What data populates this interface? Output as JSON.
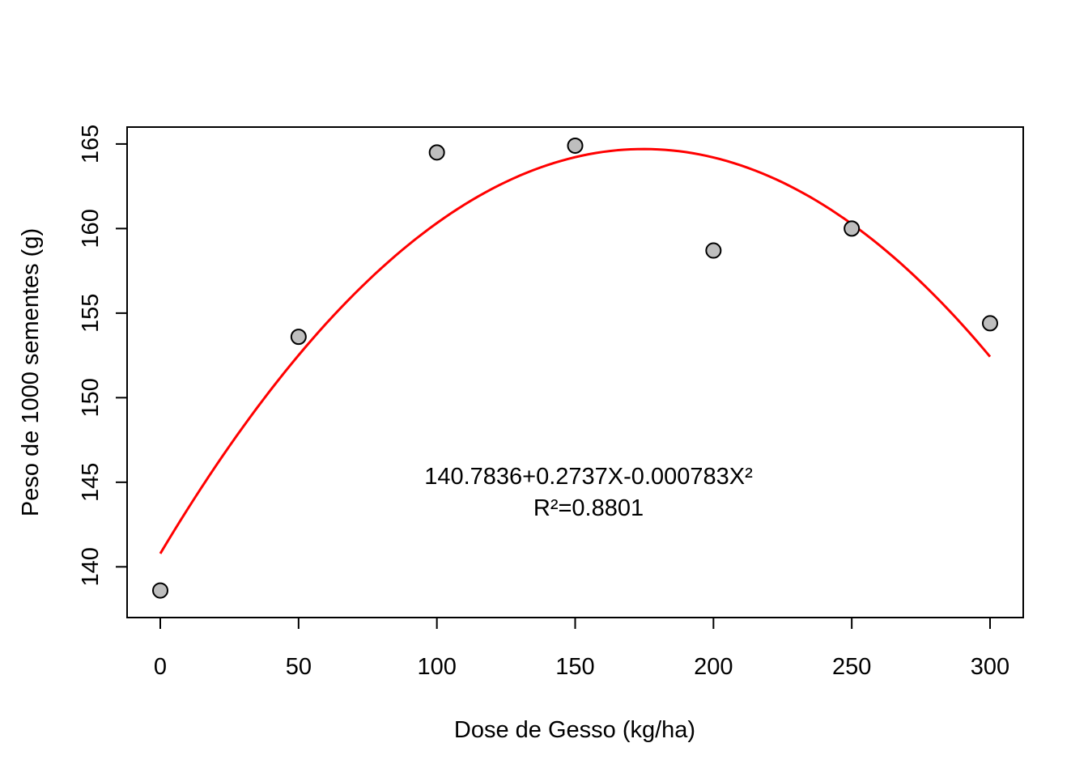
{
  "chart_data": {
    "type": "scatter",
    "title": "",
    "xlabel": "Dose de Gesso (kg/ha)",
    "ylabel": "Peso de 1000 sementes (g)",
    "xlim": [
      -12,
      312
    ],
    "ylim": [
      137,
      166
    ],
    "xticks": [
      0,
      50,
      100,
      150,
      200,
      250,
      300
    ],
    "yticks": [
      140,
      145,
      150,
      155,
      160,
      165
    ],
    "grid": false,
    "legend": "none",
    "series": [
      {
        "x": [
          0,
          50,
          100,
          150,
          200,
          250,
          300
        ],
        "y": [
          138.6,
          153.6,
          164.5,
          164.9,
          158.7,
          160.0,
          154.4
        ],
        "marker": "circle",
        "fill_color": "#bebebe",
        "edge_color": "#000000"
      }
    ],
    "fit_curve": {
      "type": "quadratic",
      "intercept": 140.7836,
      "linear": 0.2737,
      "quadratic": -0.000783,
      "x_range": [
        0,
        300
      ],
      "color": "#ff0000"
    },
    "annotations": {
      "equation": "140.7836+0.2737X-0.000783X²",
      "r_squared": "R²=0.8801"
    }
  }
}
